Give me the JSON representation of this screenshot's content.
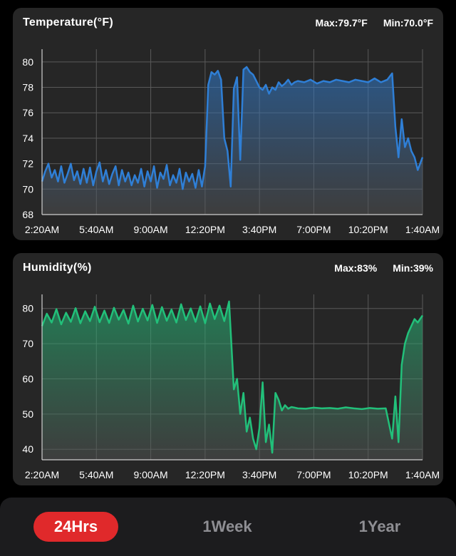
{
  "temperature": {
    "title": "Temperature(°F)",
    "max_label": "Max:79.7°F",
    "min_label": "Min:70.0°F"
  },
  "humidity": {
    "title": "Humidity(%)",
    "max_label": "Max:83%",
    "min_label": "Min:39%"
  },
  "tabs": [
    {
      "label": "24Hrs",
      "active": true
    },
    {
      "label": "1Week",
      "active": false
    },
    {
      "label": "1Year",
      "active": false
    }
  ],
  "colors": {
    "temperature_line": "#2f7fd6",
    "humidity_line": "#22c07a",
    "active_tab": "#e0292b"
  },
  "chart_data": [
    {
      "type": "area",
      "title": "Temperature(°F)",
      "ylim": [
        68,
        81
      ],
      "yticks": [
        68,
        70,
        72,
        74,
        76,
        78,
        80
      ],
      "xlim": [
        0,
        23.8
      ],
      "xticks": [
        "2:20AM",
        "5:40AM",
        "9:00AM",
        "12:20PM",
        "3:40PM",
        "7:00PM",
        "10:20PM",
        "1:40AM"
      ],
      "grid": true,
      "series": [
        {
          "x": [
            0,
            0.2,
            0.4,
            0.6,
            0.8,
            1.0,
            1.2,
            1.4,
            1.6,
            1.8,
            2.0,
            2.2,
            2.4,
            2.6,
            2.8,
            3.0,
            3.2,
            3.4,
            3.6,
            3.8,
            4.0,
            4.2,
            4.4,
            4.6,
            4.8,
            5.0,
            5.2,
            5.4,
            5.6,
            5.8,
            6.0,
            6.2,
            6.4,
            6.6,
            6.8,
            7.0,
            7.2,
            7.4,
            7.6,
            7.8,
            8.0,
            8.2,
            8.4,
            8.6,
            8.8,
            9.0,
            9.2,
            9.4,
            9.6,
            9.8,
            10.0,
            10.2,
            10.4,
            10.6,
            10.8,
            11.0,
            11.2,
            11.4,
            11.6,
            11.8,
            12.0,
            12.2,
            12.4,
            12.6,
            12.8,
            13.0,
            13.2,
            13.4,
            13.6,
            13.8,
            14.0,
            14.2,
            14.4,
            14.6,
            14.8,
            15.0,
            15.2,
            15.4,
            15.6,
            15.8,
            16.0,
            16.4,
            16.8,
            17.2,
            17.6,
            18.0,
            18.4,
            18.8,
            19.2,
            19.6,
            20.0,
            20.4,
            20.8,
            21.2,
            21.6,
            21.9,
            22.1,
            22.3,
            22.5,
            22.7,
            22.9,
            23.1,
            23.3,
            23.5,
            23.8
          ],
          "values": [
            70.6,
            71.4,
            72.0,
            70.9,
            71.5,
            70.6,
            71.8,
            70.5,
            71.2,
            72.0,
            70.7,
            71.4,
            70.4,
            71.6,
            70.5,
            71.7,
            70.3,
            71.4,
            72.1,
            70.6,
            71.5,
            70.4,
            71.2,
            71.8,
            70.3,
            71.5,
            70.6,
            71.3,
            70.3,
            71.1,
            70.5,
            71.6,
            70.2,
            71.4,
            70.6,
            71.8,
            70.1,
            71.3,
            70.8,
            71.9,
            70.3,
            71.1,
            70.5,
            71.6,
            70.0,
            71.3,
            70.6,
            71.2,
            70.1,
            71.5,
            70.2,
            71.8,
            78.2,
            79.2,
            79.0,
            79.3,
            78.6,
            74.0,
            73.0,
            70.2,
            77.9,
            78.8,
            72.3,
            79.4,
            79.6,
            79.2,
            79.0,
            78.5,
            78.0,
            77.8,
            78.2,
            77.5,
            78.0,
            77.8,
            78.4,
            78.1,
            78.3,
            78.6,
            78.2,
            78.4,
            78.5,
            78.4,
            78.6,
            78.3,
            78.5,
            78.4,
            78.6,
            78.5,
            78.4,
            78.6,
            78.5,
            78.4,
            78.7,
            78.4,
            78.6,
            79.1,
            74.9,
            72.5,
            75.5,
            73.3,
            74.0,
            73.0,
            72.5,
            71.5,
            72.5
          ]
        }
      ]
    },
    {
      "type": "area",
      "title": "Humidity(%)",
      "ylim": [
        37,
        84
      ],
      "yticks": [
        40,
        50,
        60,
        70,
        80
      ],
      "xlim": [
        0,
        23.8
      ],
      "xticks": [
        "2:20AM",
        "5:40AM",
        "9:00AM",
        "12:20PM",
        "3:40PM",
        "7:00PM",
        "10:20PM",
        "1:40AM"
      ],
      "grid": true,
      "series": [
        {
          "x": [
            0,
            0.3,
            0.6,
            0.9,
            1.2,
            1.5,
            1.8,
            2.1,
            2.4,
            2.7,
            3.0,
            3.3,
            3.6,
            3.9,
            4.2,
            4.5,
            4.8,
            5.1,
            5.4,
            5.7,
            6.0,
            6.3,
            6.6,
            6.9,
            7.2,
            7.5,
            7.8,
            8.1,
            8.4,
            8.7,
            9.0,
            9.3,
            9.6,
            9.9,
            10.2,
            10.5,
            10.8,
            11.1,
            11.4,
            11.7,
            12.0,
            12.2,
            12.4,
            12.6,
            12.8,
            13.0,
            13.2,
            13.4,
            13.6,
            13.8,
            14.0,
            14.2,
            14.4,
            14.6,
            14.8,
            15.0,
            15.2,
            15.4,
            15.6,
            15.8,
            16.0,
            16.5,
            17.0,
            17.5,
            18.0,
            18.5,
            19.0,
            19.5,
            20.0,
            20.5,
            21.0,
            21.5,
            21.9,
            22.1,
            22.3,
            22.5,
            22.7,
            22.9,
            23.1,
            23.3,
            23.5,
            23.8
          ],
          "values": [
            75.0,
            78.5,
            76.0,
            79.8,
            75.5,
            78.8,
            76.2,
            80.1,
            75.8,
            79.2,
            76.4,
            80.5,
            76.1,
            79.4,
            75.9,
            80.2,
            76.8,
            79.6,
            75.7,
            80.8,
            76.3,
            79.9,
            76.6,
            81.0,
            75.9,
            80.4,
            76.5,
            79.7,
            76.0,
            81.2,
            76.7,
            80.0,
            76.2,
            80.6,
            75.8,
            81.4,
            77.0,
            80.8,
            76.4,
            82.0,
            57.0,
            60.0,
            50.0,
            56.0,
            45.0,
            49.0,
            43.0,
            40.0,
            46.0,
            59.0,
            42.0,
            47.0,
            39.0,
            56.0,
            54.0,
            51.0,
            52.5,
            51.5,
            52.0,
            51.8,
            51.6,
            51.5,
            51.8,
            51.6,
            51.7,
            51.5,
            51.9,
            51.6,
            51.4,
            51.7,
            51.5,
            51.6,
            43.0,
            55.0,
            42.0,
            64.0,
            70.0,
            73.0,
            75.0,
            77.0,
            76.0,
            78.0
          ]
        }
      ]
    }
  ]
}
